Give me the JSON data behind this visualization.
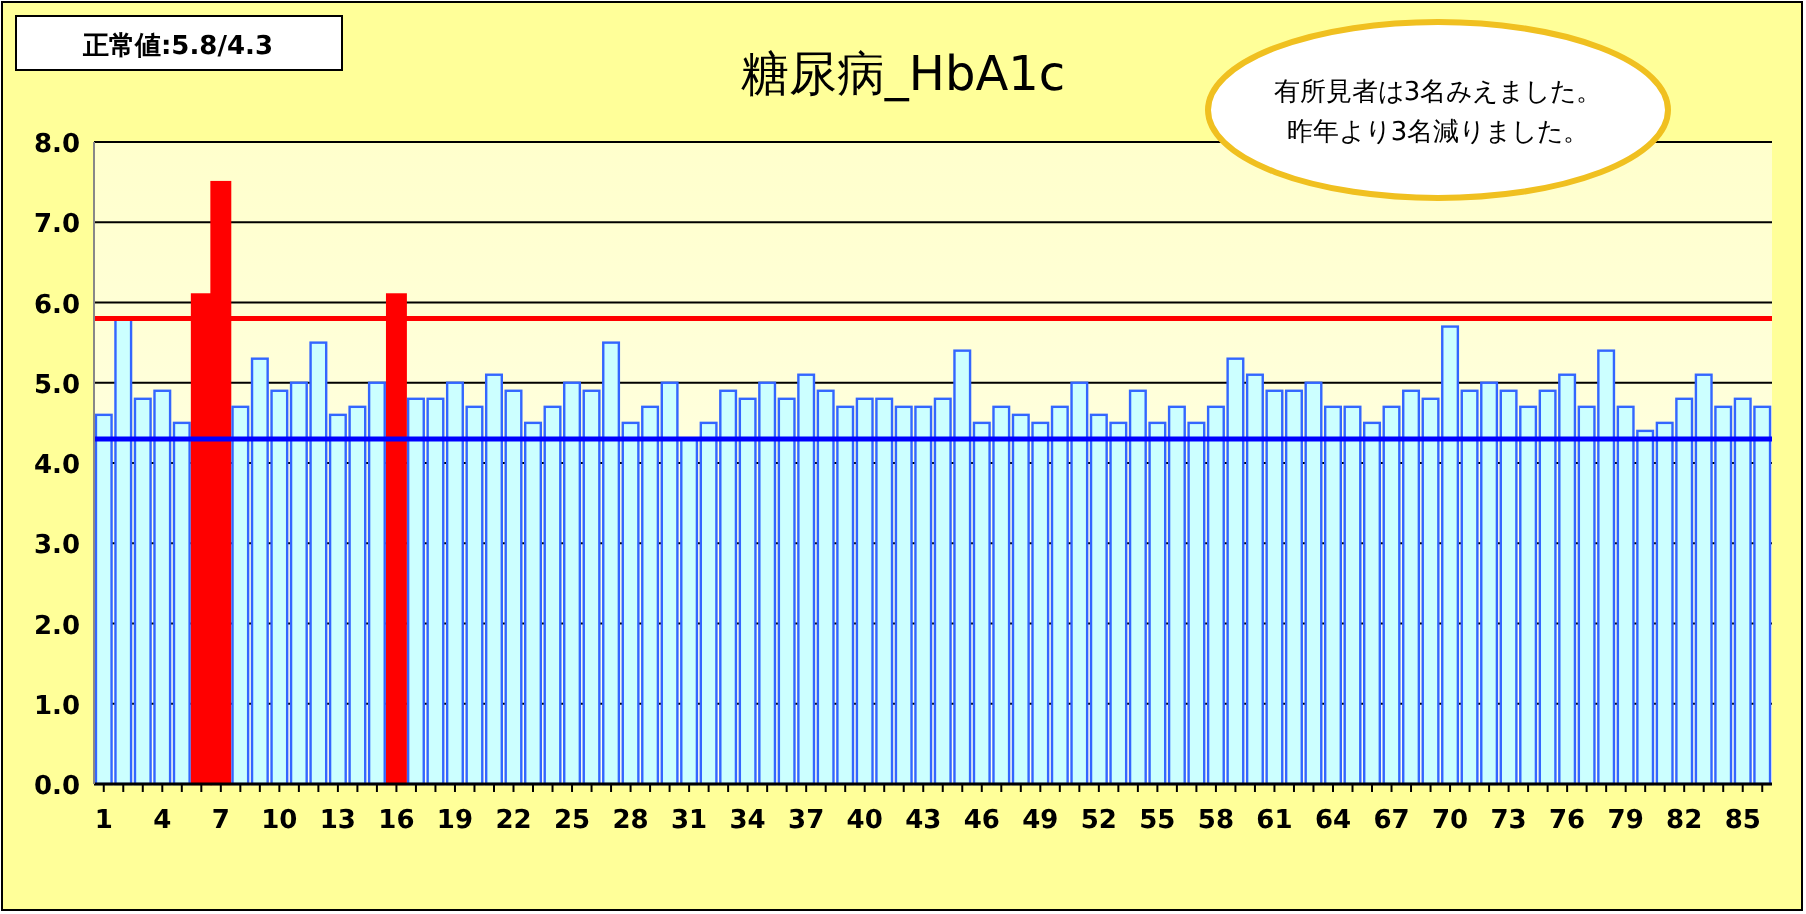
{
  "chart_data": {
    "type": "bar",
    "title": "糖尿病_HbA1c",
    "categories": [
      "1",
      null,
      null,
      "4",
      null,
      null,
      "7",
      null,
      null,
      "10",
      null,
      null,
      "13",
      null,
      null,
      "16",
      null,
      null,
      "19",
      null,
      null,
      "22",
      null,
      null,
      "25",
      null,
      null,
      "28",
      null,
      null,
      "31",
      null,
      null,
      "34",
      null,
      null,
      "37",
      null,
      null,
      "40",
      null,
      null,
      "43",
      null,
      null,
      "46",
      null,
      null,
      "49",
      null,
      null,
      "52",
      null,
      null,
      "55",
      null,
      null,
      "58",
      null,
      null,
      "61",
      null,
      null,
      "64",
      null,
      null,
      "67",
      null,
      null,
      "70",
      null,
      null,
      "73",
      null,
      null,
      "76",
      null,
      null,
      "79",
      null,
      null,
      "82",
      null,
      null,
      "85",
      null
    ],
    "values": [
      4.6,
      5.8,
      4.8,
      4.9,
      4.5,
      6.1,
      7.5,
      4.7,
      5.3,
      4.9,
      5.0,
      5.5,
      4.6,
      4.7,
      5.0,
      6.1,
      4.8,
      4.8,
      5.0,
      4.7,
      5.1,
      4.9,
      4.5,
      4.7,
      5.0,
      4.9,
      5.5,
      4.5,
      4.7,
      5.0,
      4.3,
      4.5,
      4.9,
      4.8,
      5.0,
      4.8,
      5.1,
      4.9,
      4.7,
      4.8,
      4.8,
      4.7,
      4.7,
      4.8,
      5.4,
      4.5,
      4.7,
      4.6,
      4.5,
      4.7,
      5.0,
      4.6,
      4.5,
      4.9,
      4.5,
      4.7,
      4.5,
      4.7,
      5.3,
      5.1,
      4.9,
      4.9,
      5.0,
      4.7,
      4.7,
      4.5,
      4.7,
      4.9,
      4.8,
      5.7,
      4.9,
      5.0,
      4.9,
      4.7,
      4.9,
      5.1,
      4.7,
      5.4,
      4.7,
      4.4,
      4.5,
      4.8,
      5.1,
      4.7,
      4.8,
      4.7
    ],
    "colors": [
      "#ccffff",
      "#ccffff",
      "#ccffff",
      "#ccffff",
      "#ccffff",
      "#ff0000",
      "#ff0000",
      "#ccffff",
      "#ccffff",
      "#ccffff",
      "#ccffff",
      "#ccffff",
      "#ccffff",
      "#ccffff",
      "#ccffff",
      "#ff0000",
      "#ccffff",
      "#ccffff",
      "#ccffff",
      "#ccffff",
      "#ccffff",
      "#ccffff",
      "#ccffff",
      "#ccffff",
      "#ccffff",
      "#ccffff",
      "#ccffff",
      "#ccffff",
      "#ccffff",
      "#ccffff",
      "#ccffff",
      "#ccffff",
      "#ccffff",
      "#ccffff",
      "#ccffff",
      "#ccffff",
      "#ccffff",
      "#ccffff",
      "#ccffff",
      "#ccffff",
      "#ccffff",
      "#ccffff",
      "#ccffff",
      "#ccffff",
      "#ccffff",
      "#ccffff",
      "#ccffff",
      "#ccffff",
      "#ccffff",
      "#ccffff",
      "#ccffff",
      "#ccffff",
      "#ccffff",
      "#ccffff",
      "#ccffff",
      "#ccffff",
      "#ccffff",
      "#ccffff",
      "#ccffff",
      "#ccffff",
      "#ccffff",
      "#ccffff",
      "#ccffff",
      "#ccffff",
      "#ccffff",
      "#ccffff",
      "#ccffff",
      "#ccffff",
      "#ccffff",
      "#ccffff",
      "#ccffff",
      "#ccffff",
      "#ccffff",
      "#ccffff",
      "#ccffff",
      "#ccffff",
      "#ccffff",
      "#ccffff",
      "#ccffff",
      "#ccffff",
      "#ccffff",
      "#ccffff",
      "#ccffff",
      "#ccffff",
      "#ccffff",
      "#ccffff"
    ],
    "ylim": [
      0,
      8
    ],
    "yticks": [
      {
        "value": 0,
        "label": "0.0"
      },
      {
        "value": 1,
        "label": "1.0"
      },
      {
        "value": 2,
        "label": "2.0"
      },
      {
        "value": 3,
        "label": "3.0"
      },
      {
        "value": 4,
        "label": "4.0"
      },
      {
        "value": 5,
        "label": "5.0"
      },
      {
        "value": 6,
        "label": "6.0"
      },
      {
        "value": 7,
        "label": "7.0"
      },
      {
        "value": 8,
        "label": "8.0"
      }
    ],
    "grid": "y",
    "ref_lines": [
      {
        "axis": "y",
        "value": 5.8,
        "color": "#ff0000"
      },
      {
        "axis": "y",
        "value": 4.3,
        "color": "#0000ff"
      }
    ],
    "annotations": [
      "正常値:5.8/4.3",
      "有所見者は3名みえました。",
      "昨年より3名減りました。"
    ]
  }
}
